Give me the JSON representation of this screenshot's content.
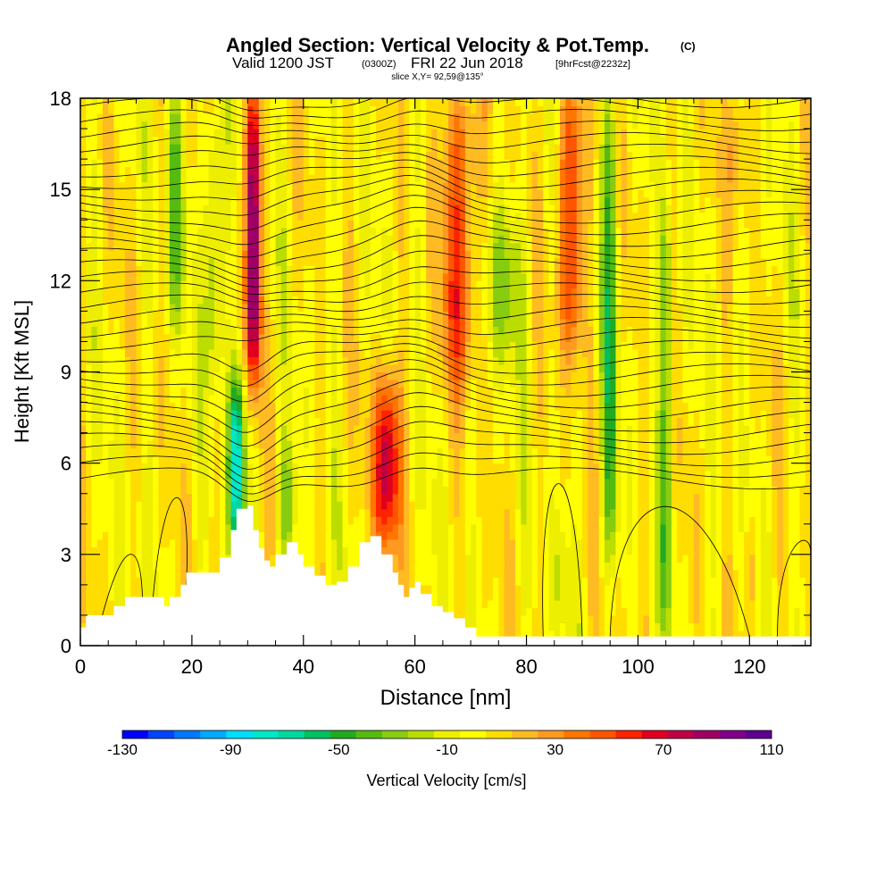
{
  "header": {
    "title": "Angled Section: Vertical Velocity & Pot.Temp.",
    "copyright": "(C)",
    "valid_prefix": "Valid 1200 JST",
    "valid_utc": "(0300Z)",
    "valid_date": "FRI 22 Jun 2018",
    "forecast": "[9hrFcst@2232z]",
    "slice": "slice X,Y= 92,59@135°"
  },
  "chart_data": {
    "type": "heatmap",
    "xlabel": "Distance [nm]",
    "ylabel": "Height [Kft MSL]",
    "xlim": [
      0,
      131
    ],
    "ylim": [
      0,
      18
    ],
    "xticks": [
      "0",
      "20",
      "40",
      "60",
      "80",
      "100",
      "120"
    ],
    "xtick_values": [
      0,
      20,
      40,
      60,
      80,
      100,
      120
    ],
    "yticks": [
      "0",
      "3",
      "6",
      "9",
      "12",
      "15",
      "18"
    ],
    "ytick_values": [
      0,
      3,
      6,
      9,
      12,
      15,
      18
    ],
    "colorbar": {
      "label": "Vertical Velocity [cm/s]",
      "tick_labels": [
        "-130",
        "-90",
        "-50",
        "-10",
        "30",
        "70",
        "110"
      ],
      "tick_values": [
        -130,
        -90,
        -50,
        -10,
        30,
        70,
        110
      ],
      "levels": [
        -130,
        -120,
        -110,
        -100,
        -90,
        -80,
        -70,
        -60,
        -50,
        -40,
        -30,
        -20,
        -10,
        0,
        10,
        20,
        30,
        40,
        50,
        60,
        70,
        80,
        90,
        100,
        110
      ],
      "colors": [
        "#0000ff",
        "#0044ff",
        "#0077ff",
        "#00aaff",
        "#00ddff",
        "#00e8c8",
        "#00d8a0",
        "#00c060",
        "#22aa22",
        "#55bb11",
        "#88cc11",
        "#bbdd00",
        "#eeee00",
        "#ffff00",
        "#ffdd00",
        "#ffbb22",
        "#ff9922",
        "#ff7700",
        "#ff5500",
        "#ff2200",
        "#e0001e",
        "#c00044",
        "#a00066",
        "#800088",
        "#5e0090"
      ]
    },
    "updraft_cores": [
      {
        "x": 31,
        "ybot": 9,
        "ytop": 18,
        "w": 1.3,
        "value": 105
      },
      {
        "x": 55,
        "ybot": 3.5,
        "ytop": 8.5,
        "w": 2.3,
        "value": 90
      },
      {
        "x": 68,
        "ybot": 9,
        "ytop": 18,
        "w": 3.0,
        "value": 55
      },
      {
        "x": 88,
        "ybot": 10,
        "ytop": 18,
        "w": 2.5,
        "value": 55
      },
      {
        "x": 120,
        "ybot": 1.5,
        "ytop": 3.5,
        "w": 1.2,
        "value": 35
      },
      {
        "x": 118,
        "ybot": 15,
        "ytop": 18,
        "w": 2.0,
        "value": 35
      }
    ],
    "downdraft_cores": [
      {
        "x": 28,
        "ybot": 3.5,
        "ytop": 8.5,
        "w": 1.4,
        "value": -100
      },
      {
        "x": 17,
        "ybot": 11,
        "ytop": 18,
        "w": 1.6,
        "value": -40
      },
      {
        "x": 24,
        "ybot": 9,
        "ytop": 17,
        "w": 1.6,
        "value": -40
      },
      {
        "x": 37,
        "ybot": 3,
        "ytop": 6,
        "w": 1.6,
        "value": -50
      },
      {
        "x": 76,
        "ybot": 10,
        "ytop": 14,
        "w": 4.0,
        "value": -35
      },
      {
        "x": 95,
        "ybot": 3,
        "ytop": 18,
        "w": 1.4,
        "value": -45
      },
      {
        "x": 105,
        "ybot": 1,
        "ytop": 14,
        "w": 1.2,
        "value": -40
      },
      {
        "x": 86,
        "ybot": 1,
        "ytop": 3.5,
        "w": 1.5,
        "value": -25
      }
    ],
    "terrain": [
      [
        0,
        0.6
      ],
      [
        1,
        1.0
      ],
      [
        5,
        1.0
      ],
      [
        6,
        1.3
      ],
      [
        8,
        1.6
      ],
      [
        13,
        1.6
      ],
      [
        15,
        1.3
      ],
      [
        16,
        1.6
      ],
      [
        18,
        2.0
      ],
      [
        19,
        2.4
      ],
      [
        23,
        2.4
      ],
      [
        25,
        2.9
      ],
      [
        27,
        3.8
      ],
      [
        28,
        4.5
      ],
      [
        30,
        4.6
      ],
      [
        31,
        3.8
      ],
      [
        32,
        3.2
      ],
      [
        33,
        2.8
      ],
      [
        34,
        2.6
      ],
      [
        35,
        3.0
      ],
      [
        37,
        3.4
      ],
      [
        39,
        3.0
      ],
      [
        40,
        2.6
      ],
      [
        42,
        2.3
      ],
      [
        44,
        2.0
      ],
      [
        46,
        2.1
      ],
      [
        48,
        2.6
      ],
      [
        50,
        3.4
      ],
      [
        52,
        3.6
      ],
      [
        54,
        3.0
      ],
      [
        56,
        2.4
      ],
      [
        57,
        2.0
      ],
      [
        58,
        1.6
      ],
      [
        59,
        1.9
      ],
      [
        60,
        2.1
      ],
      [
        61,
        1.7
      ],
      [
        63,
        1.3
      ],
      [
        65,
        1.1
      ],
      [
        67,
        0.9
      ],
      [
        69,
        0.6
      ],
      [
        71,
        0.3
      ],
      [
        131,
        0.3
      ]
    ]
  }
}
